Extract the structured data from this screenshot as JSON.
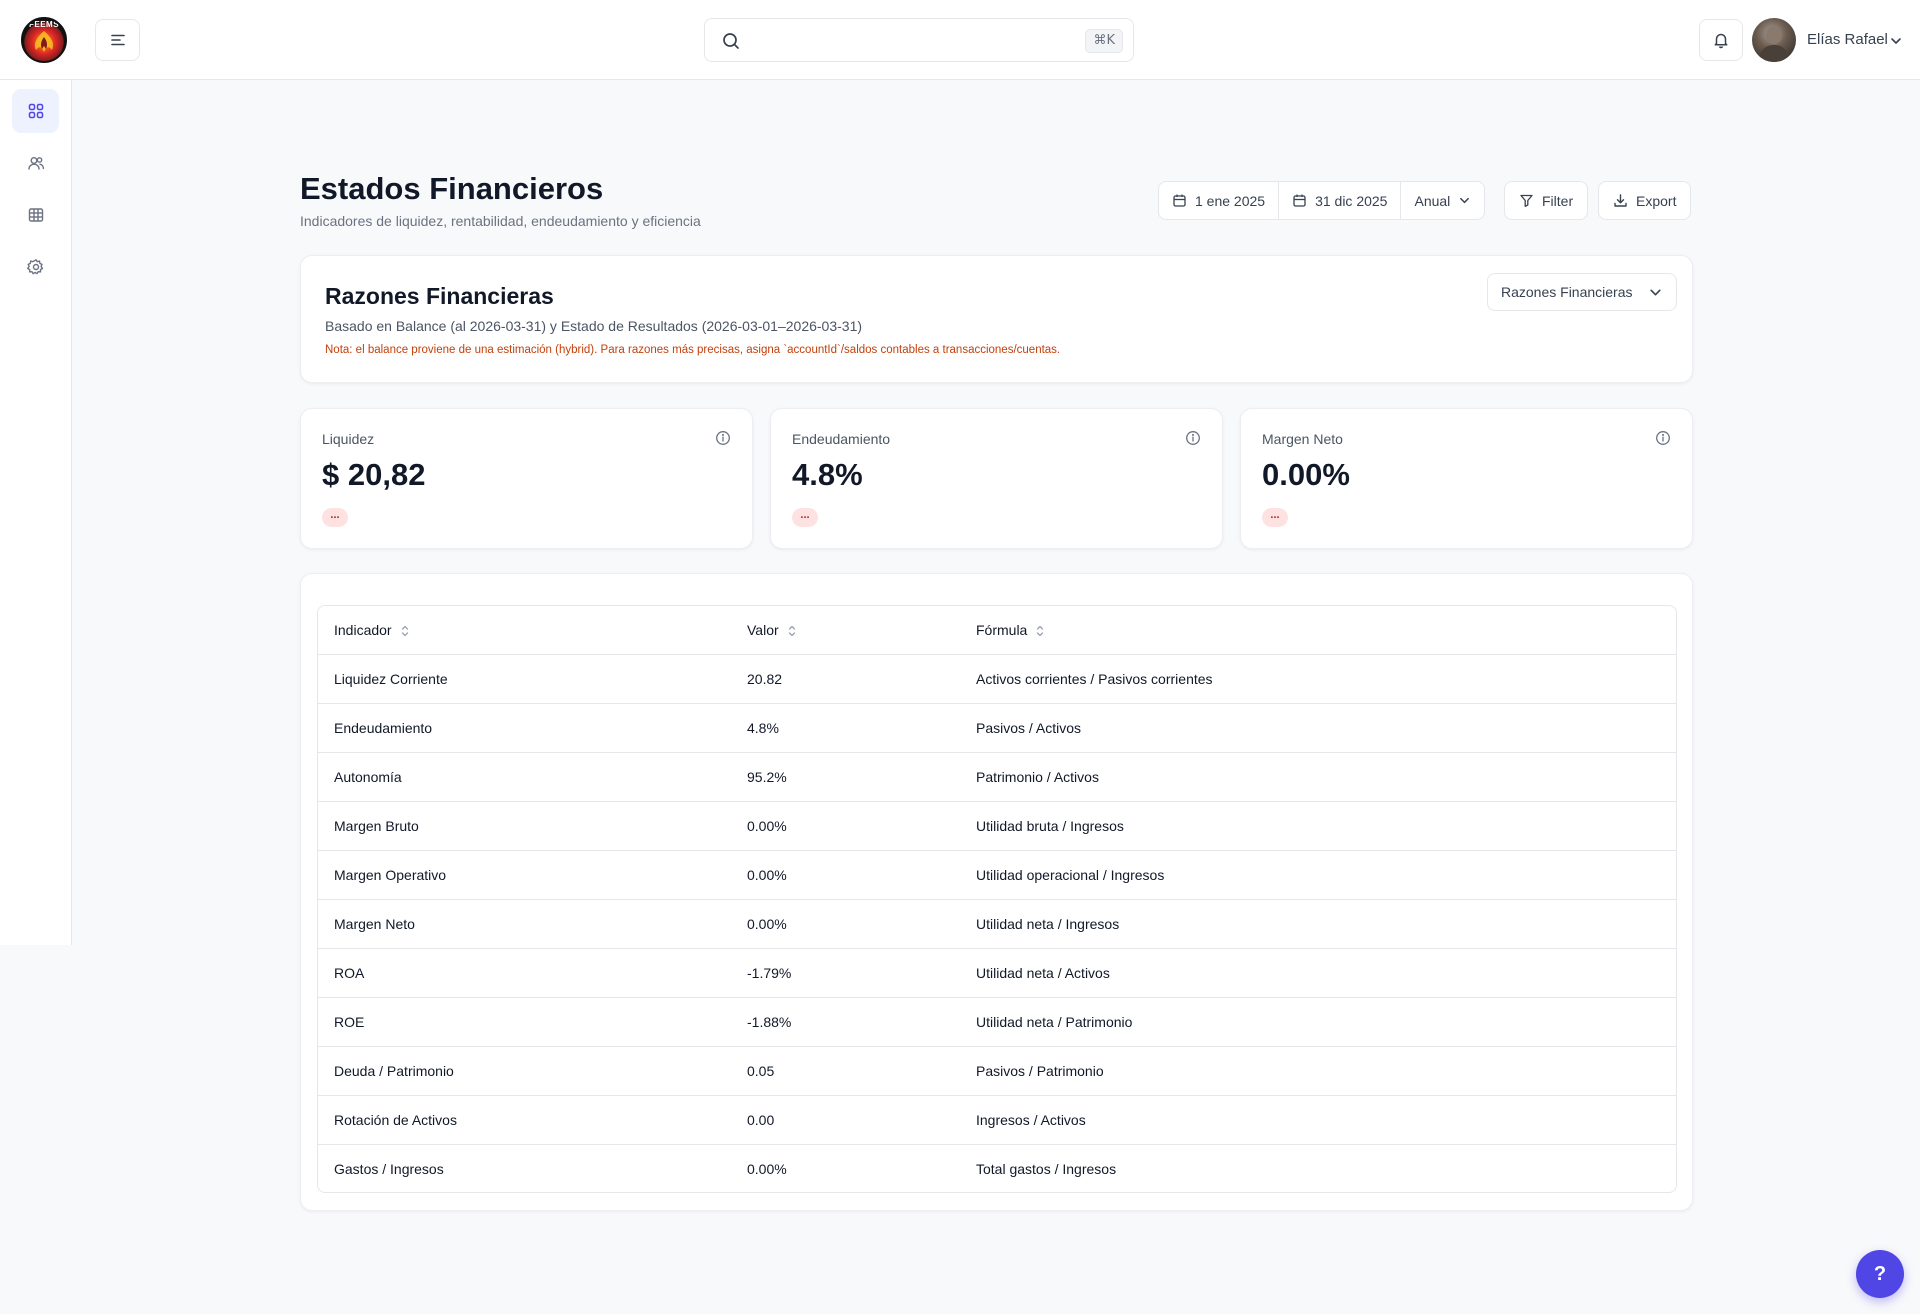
{
  "header": {
    "logo_text": "FEEMS",
    "search": {
      "value": "",
      "placeholder": "",
      "shortcut": "⌘K"
    },
    "user": {
      "name": "Elías Rafael"
    }
  },
  "sidebar": {
    "items": [
      {
        "icon": "dashboard-grid-icon",
        "active": true
      },
      {
        "icon": "users-icon",
        "active": false
      },
      {
        "icon": "table-icon",
        "active": false
      },
      {
        "icon": "gear-icon",
        "active": false
      }
    ]
  },
  "page": {
    "title": "Estados Financieros",
    "subtitle": "Indicadores de liquidez, rentabilidad, endeudamiento y eficiencia",
    "date_start": "1 ene 2025",
    "date_end": "31 dic 2025",
    "period": "Anual",
    "filter_label": "Filter",
    "export_label": "Export"
  },
  "razones": {
    "title": "Razones Financieras",
    "subtitle": "Basado en Balance (al 2026-03-31) y Estado de Resultados (2026-03-01–2026-03-31)",
    "note": "Nota: el balance proviene de una estimación (hybrid). Para razones más precisas, asigna `accountId`/saldos contables a transacciones/cuentas.",
    "selector": "Razones Financieras"
  },
  "metrics": [
    {
      "label": "Liquidez",
      "value": "$ 20,82",
      "badge": "..."
    },
    {
      "label": "Endeudamiento",
      "value": "4.8%",
      "badge": "..."
    },
    {
      "label": "Margen Neto",
      "value": "0.00%",
      "badge": "..."
    }
  ],
  "table": {
    "headers": [
      "Indicador",
      "Valor",
      "Fórmula"
    ],
    "rows": [
      {
        "indicador": "Liquidez Corriente",
        "valor": "20.82",
        "formula": "Activos corrientes / Pasivos corrientes"
      },
      {
        "indicador": "Endeudamiento",
        "valor": "4.8%",
        "formula": "Pasivos / Activos"
      },
      {
        "indicador": "Autonomía",
        "valor": "95.2%",
        "formula": "Patrimonio / Activos"
      },
      {
        "indicador": "Margen Bruto",
        "valor": "0.00%",
        "formula": "Utilidad bruta / Ingresos"
      },
      {
        "indicador": "Margen Operativo",
        "valor": "0.00%",
        "formula": "Utilidad operacional / Ingresos"
      },
      {
        "indicador": "Margen Neto",
        "valor": "0.00%",
        "formula": "Utilidad neta / Ingresos"
      },
      {
        "indicador": "ROA",
        "valor": "-1.79%",
        "formula": "Utilidad neta / Activos"
      },
      {
        "indicador": "ROE",
        "valor": "-1.88%",
        "formula": "Utilidad neta / Patrimonio"
      },
      {
        "indicador": "Deuda / Patrimonio",
        "valor": "0.05",
        "formula": "Pasivos / Patrimonio"
      },
      {
        "indicador": "Rotación de Activos",
        "valor": "0.00",
        "formula": "Ingresos / Activos"
      },
      {
        "indicador": "Gastos / Ingresos",
        "valor": "0.00%",
        "formula": "Total gastos / Ingresos"
      }
    ]
  },
  "help": {
    "label": "?"
  },
  "colors": {
    "accent": "#4f46e5",
    "note": "#c2410c",
    "badge_bg": "#fee2e2",
    "badge_text": "#b91c1c",
    "active_nav": "#eef2ff"
  }
}
